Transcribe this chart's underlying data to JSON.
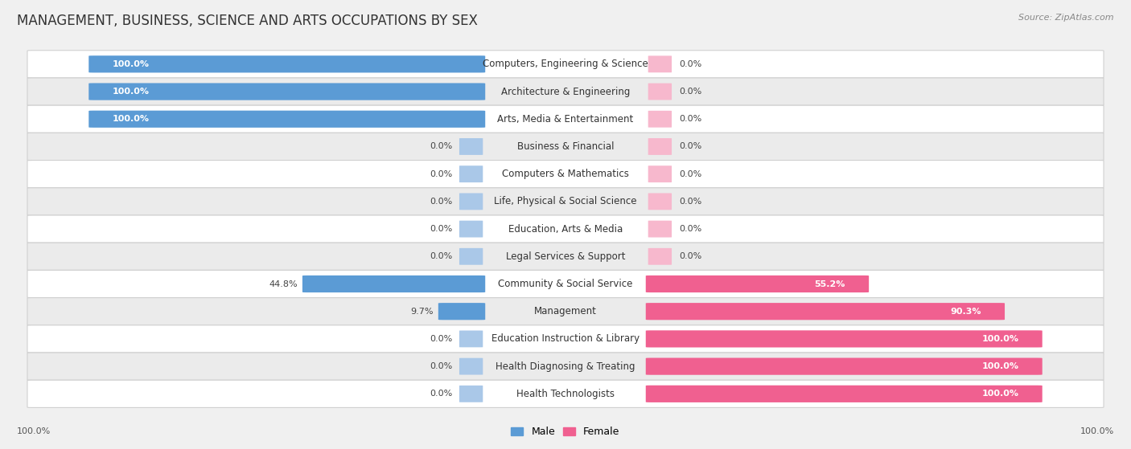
{
  "title": "MANAGEMENT, BUSINESS, SCIENCE AND ARTS OCCUPATIONS BY SEX",
  "source": "Source: ZipAtlas.com",
  "categories": [
    "Computers, Engineering & Science",
    "Architecture & Engineering",
    "Arts, Media & Entertainment",
    "Business & Financial",
    "Computers & Mathematics",
    "Life, Physical & Social Science",
    "Education, Arts & Media",
    "Legal Services & Support",
    "Community & Social Service",
    "Management",
    "Education Instruction & Library",
    "Health Diagnosing & Treating",
    "Health Technologists"
  ],
  "male_pct": [
    100.0,
    100.0,
    100.0,
    0.0,
    0.0,
    0.0,
    0.0,
    0.0,
    44.8,
    9.7,
    0.0,
    0.0,
    0.0
  ],
  "female_pct": [
    0.0,
    0.0,
    0.0,
    0.0,
    0.0,
    0.0,
    0.0,
    0.0,
    55.2,
    90.3,
    100.0,
    100.0,
    100.0
  ],
  "male_color_full": "#5b9bd5",
  "male_color_zero": "#aac8e8",
  "female_color_full": "#f06090",
  "female_color_zero": "#f7b8cd",
  "female_color_partial": "#f06090",
  "background_color": "#f0f0f0",
  "row_color_light": "#ffffff",
  "row_color_dark": "#ebebeb",
  "bar_height": 0.6,
  "title_fontsize": 12,
  "label_fontsize": 8.5,
  "pct_fontsize": 8,
  "source_fontsize": 8
}
